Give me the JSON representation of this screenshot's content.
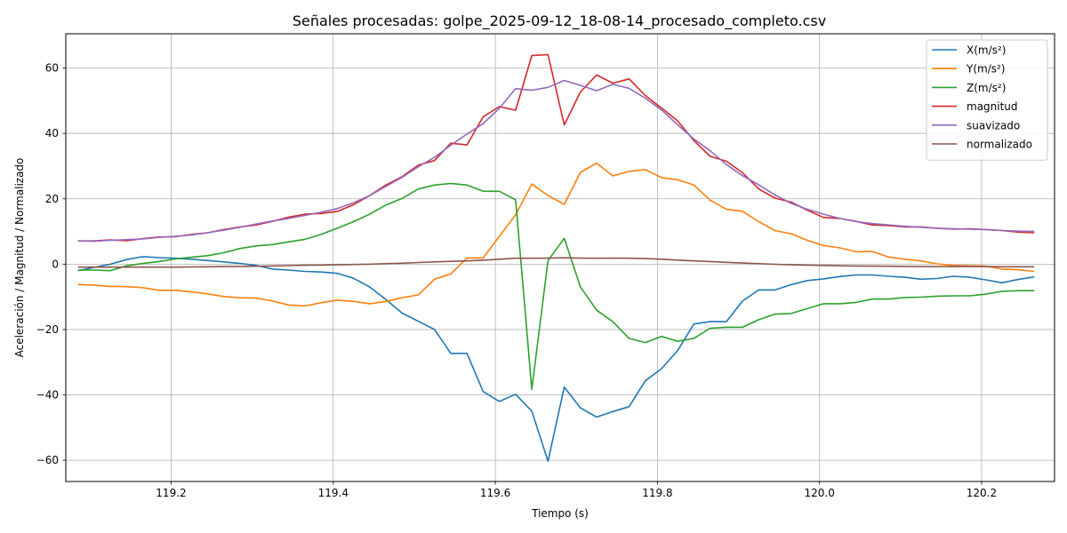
{
  "chart_data": {
    "type": "line",
    "title": "Señales procesadas: golpe_2025-09-12_18-08-14_procesado_completo.csv",
    "xlabel": "Tiempo (s)",
    "ylabel": "Aceleración / Magnitud / Normalizado",
    "xlim": [
      119.07,
      120.29
    ],
    "ylim": [
      -66.5,
      70.5
    ],
    "xticks": [
      119.2,
      119.4,
      119.6,
      119.8,
      120.0,
      120.2
    ],
    "xtick_labels": [
      "119.2",
      "119.4",
      "119.6",
      "119.8",
      "120.0",
      "120.2"
    ],
    "yticks": [
      -60,
      -40,
      -20,
      0,
      20,
      40,
      60
    ],
    "ytick_labels": [
      "−60",
      "−40",
      "−20",
      "0",
      "20",
      "40",
      "60"
    ],
    "grid": true,
    "legend_position": "top-right",
    "x": [
      119.085,
      119.105,
      119.125,
      119.145,
      119.165,
      119.185,
      119.205,
      119.225,
      119.245,
      119.265,
      119.285,
      119.305,
      119.325,
      119.345,
      119.365,
      119.385,
      119.405,
      119.425,
      119.445,
      119.465,
      119.485,
      119.505,
      119.525,
      119.545,
      119.565,
      119.585,
      119.605,
      119.625,
      119.645,
      119.665,
      119.685,
      119.705,
      119.725,
      119.745,
      119.765,
      119.785,
      119.805,
      119.825,
      119.845,
      119.865,
      119.885,
      119.905,
      119.925,
      119.945,
      119.965,
      119.985,
      120.005,
      120.025,
      120.045,
      120.065,
      120.085,
      120.105,
      120.125,
      120.145,
      120.165,
      120.185,
      120.205,
      120.225,
      120.245,
      120.265
    ],
    "series": [
      {
        "name": "X(m/s²)",
        "color": "#1f77b4",
        "values": [
          -2.0,
          -1.0,
          0.0,
          1.4,
          2.3,
          2.0,
          1.8,
          1.5,
          1.1,
          0.7,
          0.2,
          -0.4,
          -1.5,
          -1.8,
          -2.2,
          -2.4,
          -2.8,
          -4.3,
          -7.0,
          -10.8,
          -15.0,
          -17.5,
          -20.0,
          -27.3,
          -27.3,
          -39.0,
          -42.0,
          -39.8,
          -45.0,
          -60.3,
          -37.6,
          -44.0,
          -46.8,
          -45.1,
          -43.6,
          -35.7,
          -32.0,
          -26.4,
          -18.3,
          -17.6,
          -17.6,
          -11.3,
          -7.9,
          -7.9,
          -6.3,
          -5.0,
          -4.5,
          -3.8,
          -3.3,
          -3.3,
          -3.7,
          -4.0,
          -4.6,
          -4.4,
          -3.7,
          -4.0,
          -4.8,
          -5.7,
          -4.7,
          -3.9
        ]
      },
      {
        "name": "Y(m/s²)",
        "color": "#ff7f0e",
        "values": [
          -6.2,
          -6.4,
          -6.8,
          -6.9,
          -7.2,
          -8.0,
          -8.0,
          -8.5,
          -9.1,
          -9.9,
          -10.3,
          -10.4,
          -11.3,
          -12.5,
          -12.8,
          -11.8,
          -11.0,
          -11.4,
          -12.1,
          -11.4,
          -10.3,
          -9.4,
          -4.6,
          -3.0,
          1.9,
          1.9,
          8.5,
          15.1,
          24.5,
          21.0,
          18.3,
          28.1,
          30.9,
          27.0,
          28.4,
          28.9,
          26.5,
          25.8,
          24.2,
          19.6,
          16.8,
          16.2,
          13.0,
          10.3,
          9.3,
          7.3,
          5.7,
          5.0,
          3.8,
          3.9,
          2.2,
          1.5,
          1.0,
          0.1,
          -0.4,
          -0.5,
          -0.6,
          -1.5,
          -1.7,
          -2.2
        ]
      },
      {
        "name": "Z(m/s²)",
        "color": "#2ca02c",
        "values": [
          -1.8,
          -1.8,
          -2.0,
          -0.5,
          0.2,
          0.8,
          1.6,
          2.1,
          2.6,
          3.5,
          4.8,
          5.6,
          6.0,
          6.8,
          7.6,
          9.1,
          11.0,
          13.0,
          15.3,
          18.1,
          20.1,
          23.0,
          24.2,
          24.7,
          24.2,
          22.3,
          22.3,
          19.7,
          -38.3,
          1.1,
          7.9,
          -7.0,
          -14.1,
          -17.6,
          -22.7,
          -24.0,
          -22.1,
          -23.6,
          -22.7,
          -19.6,
          -19.3,
          -19.3,
          -17.0,
          -15.3,
          -15.1,
          -13.6,
          -12.1,
          -12.1,
          -11.7,
          -10.7,
          -10.7,
          -10.2,
          -10.1,
          -9.8,
          -9.7,
          -9.7,
          -9.2,
          -8.3,
          -8.1,
          -8.1
        ]
      },
      {
        "name": "magnitud",
        "color": "#d62728",
        "values": [
          7.1,
          7.1,
          7.4,
          7.2,
          7.8,
          8.3,
          8.4,
          9.1,
          9.6,
          10.6,
          11.4,
          12.0,
          13.1,
          14.4,
          15.3,
          15.5,
          16.1,
          18.2,
          21.0,
          24.2,
          26.8,
          30.3,
          31.7,
          37.0,
          36.5,
          45.1,
          48.2,
          47.1,
          63.8,
          64.1,
          42.6,
          52.7,
          57.9,
          55.4,
          56.7,
          51.6,
          47.8,
          43.8,
          37.8,
          33.0,
          31.5,
          28.0,
          23.0,
          20.2,
          19.0,
          16.5,
          14.3,
          14.0,
          13.1,
          12.0,
          11.8,
          11.4,
          11.4,
          11.0,
          10.7,
          10.8,
          10.6,
          10.3,
          9.8,
          9.6
        ]
      },
      {
        "name": "suavizado",
        "color": "#9467bd",
        "values": [
          7.1,
          7.0,
          7.3,
          7.5,
          7.7,
          8.2,
          8.5,
          8.9,
          9.6,
          10.4,
          11.3,
          12.3,
          13.2,
          14.0,
          14.9,
          15.9,
          17.0,
          18.8,
          21.0,
          23.8,
          26.6,
          29.8,
          32.7,
          36.4,
          39.8,
          43.0,
          47.7,
          53.7,
          53.2,
          54.1,
          56.2,
          54.7,
          53.1,
          55.0,
          53.8,
          50.8,
          47.2,
          42.6,
          38.3,
          34.7,
          30.5,
          27.1,
          24.3,
          21.2,
          18.6,
          16.8,
          15.3,
          14.0,
          13.0,
          12.4,
          12.0,
          11.6,
          11.3,
          11.0,
          10.8,
          10.7,
          10.6,
          10.3,
          10.1,
          10.0
        ]
      },
      {
        "name": "normalizado",
        "color": "#8c564b",
        "values": [
          -0.9,
          -0.9,
          -0.9,
          -0.9,
          -0.9,
          -0.9,
          -0.9,
          -0.85,
          -0.8,
          -0.75,
          -0.7,
          -0.65,
          -0.55,
          -0.45,
          -0.35,
          -0.3,
          -0.2,
          -0.1,
          0.0,
          0.15,
          0.3,
          0.5,
          0.7,
          0.85,
          1.0,
          1.2,
          1.5,
          1.8,
          1.8,
          1.85,
          1.95,
          1.85,
          1.8,
          1.85,
          1.8,
          1.7,
          1.5,
          1.25,
          1.0,
          0.8,
          0.55,
          0.35,
          0.15,
          -0.05,
          -0.2,
          -0.3,
          -0.4,
          -0.5,
          -0.55,
          -0.6,
          -0.65,
          -0.7,
          -0.75,
          -0.75,
          -0.75,
          -0.75,
          -0.75,
          -0.8,
          -0.8,
          -0.8
        ]
      }
    ]
  }
}
